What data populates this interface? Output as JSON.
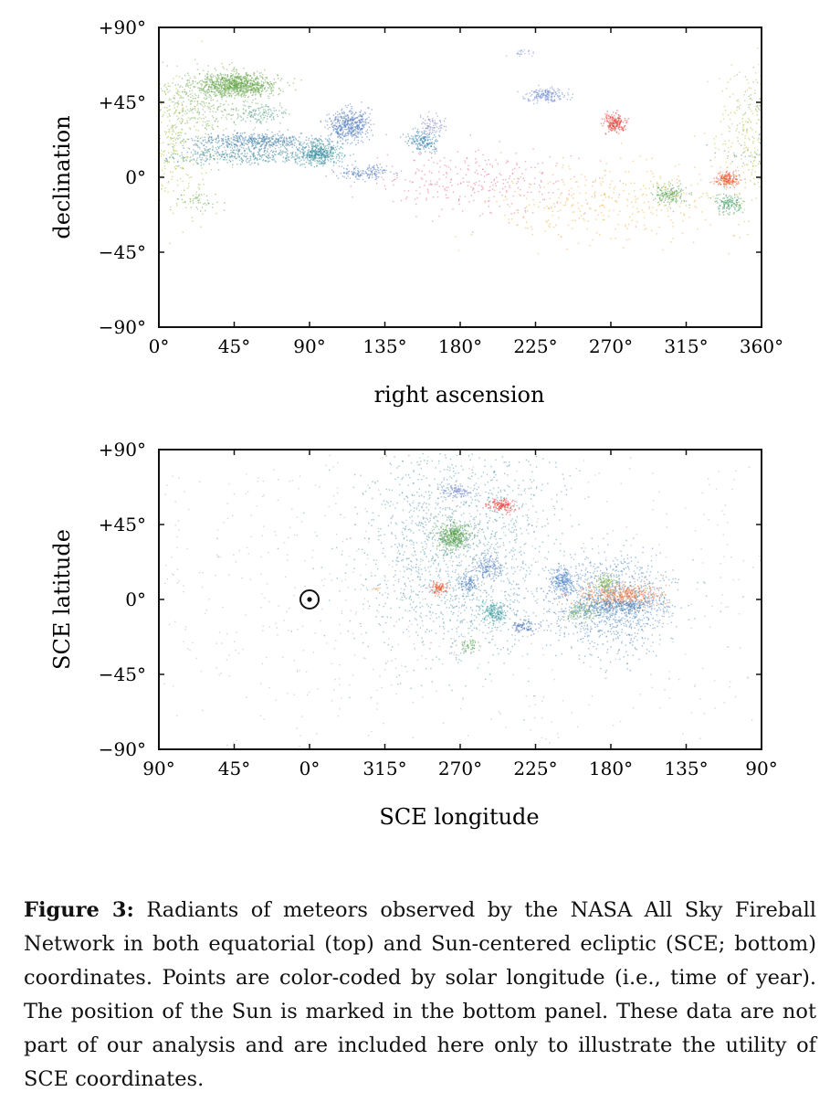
{
  "chart_data": [
    {
      "type": "scatter",
      "title": "",
      "xlabel": "right ascension",
      "ylabel": "declination",
      "xlim": [
        0,
        360
      ],
      "ylim": [
        -90,
        90
      ],
      "x_ticks": [
        "0°",
        "45°",
        "90°",
        "135°",
        "180°",
        "225°",
        "270°",
        "315°",
        "360°"
      ],
      "y_ticks": [
        "+90°",
        "+45°",
        "0°",
        "−45°",
        "−90°"
      ],
      "grid": false,
      "color_encoding": "solar longitude (time of year)",
      "clusters": [
        {
          "x": 46,
          "y": 56,
          "spread": [
            12,
            3.5
          ],
          "n": 900,
          "color": "#6aa84f"
        },
        {
          "x": 25,
          "y": 45,
          "spread": [
            18,
            10
          ],
          "n": 400,
          "color": "#7fb069"
        },
        {
          "x": 60,
          "y": 38,
          "spread": [
            8,
            3
          ],
          "n": 120,
          "color": "#5a9e8c"
        },
        {
          "x": 58,
          "y": 22,
          "spread": [
            22,
            2.5
          ],
          "n": 500,
          "color": "#3f7fa8"
        },
        {
          "x": 48,
          "y": 13,
          "spread": [
            26,
            2.5
          ],
          "n": 400,
          "color": "#4a8fa0"
        },
        {
          "x": 95,
          "y": 15,
          "spread": [
            6,
            3.5
          ],
          "n": 420,
          "color": "#3c8fa0"
        },
        {
          "x": 113,
          "y": 32,
          "spread": [
            6,
            4.5
          ],
          "n": 450,
          "color": "#5a7fc0"
        },
        {
          "x": 123,
          "y": 3,
          "spread": [
            8,
            2
          ],
          "n": 150,
          "color": "#5a7fc0"
        },
        {
          "x": 158,
          "y": 22,
          "spread": [
            5,
            3
          ],
          "n": 180,
          "color": "#3f86b0"
        },
        {
          "x": 162,
          "y": 32,
          "spread": [
            4,
            3
          ],
          "n": 80,
          "color": "#7f86c0"
        },
        {
          "x": 231,
          "y": 50,
          "spread": [
            6,
            2
          ],
          "n": 170,
          "color": "#6f8ad0"
        },
        {
          "x": 218,
          "y": 75,
          "spread": [
            4,
            1.5
          ],
          "n": 25,
          "color": "#8fa0d0"
        },
        {
          "x": 272,
          "y": 33,
          "spread": [
            3.5,
            2.5
          ],
          "n": 200,
          "color": "#e8413c"
        },
        {
          "x": 305,
          "y": -10,
          "spread": [
            5,
            3
          ],
          "n": 160,
          "color": "#5aa050"
        },
        {
          "x": 339,
          "y": -1,
          "spread": [
            3.5,
            2
          ],
          "n": 170,
          "color": "#f05030"
        },
        {
          "x": 340,
          "y": -15,
          "spread": [
            4,
            3
          ],
          "n": 130,
          "color": "#3f9a60"
        },
        {
          "x": 25,
          "y": -14,
          "spread": [
            8,
            3
          ],
          "n": 50,
          "color": "#6aa84f"
        },
        {
          "x": 190,
          "y": -3,
          "spread": [
            30,
            10
          ],
          "n": 300,
          "color": "#e96a8a"
        },
        {
          "x": 270,
          "y": -15,
          "spread": [
            35,
            12
          ],
          "n": 350,
          "color": "#f0b040"
        },
        {
          "x": 10,
          "y": 20,
          "spread": [
            12,
            20
          ],
          "n": 250,
          "color": "#a0c040"
        },
        {
          "x": 350,
          "y": 20,
          "spread": [
            12,
            25
          ],
          "n": 200,
          "color": "#c0c040"
        }
      ]
    },
    {
      "type": "scatter",
      "title": "",
      "xlabel": "SCE longitude",
      "ylabel": "SCE latitude",
      "xlim": [
        90,
        -270
      ],
      "ylim": [
        -90,
        90
      ],
      "x_ticks": [
        "90°",
        "45°",
        "0°",
        "315°",
        "270°",
        "225°",
        "180°",
        "135°",
        "90°"
      ],
      "y_ticks": [
        "+90°",
        "+45°",
        "0°",
        "−45°",
        "−90°"
      ],
      "grid": false,
      "sun_marker": {
        "x": 0,
        "y": 0,
        "symbol": "⊙"
      },
      "color_encoding": "solar longitude (time of year)",
      "clusters": [
        {
          "x": 270,
          "y": 30,
          "spread": [
            30,
            32
          ],
          "n": 1600,
          "color": "#5a9ab0"
        },
        {
          "x": 178,
          "y": -2,
          "spread": [
            18,
            14
          ],
          "n": 1100,
          "color": "#5a8fc0"
        },
        {
          "x": 274,
          "y": 38,
          "spread": [
            5,
            4
          ],
          "n": 400,
          "color": "#5aa050"
        },
        {
          "x": 272,
          "y": 65,
          "spread": [
            5,
            2
          ],
          "n": 90,
          "color": "#6f7fc8"
        },
        {
          "x": 245,
          "y": 57,
          "spread": [
            4,
            2
          ],
          "n": 140,
          "color": "#e8413c"
        },
        {
          "x": 283,
          "y": 7,
          "spread": [
            2.5,
            2
          ],
          "n": 90,
          "color": "#f05030"
        },
        {
          "x": 266,
          "y": 10,
          "spread": [
            3,
            2.5
          ],
          "n": 90,
          "color": "#4a7fc0"
        },
        {
          "x": 253,
          "y": 20,
          "spread": [
            5,
            4
          ],
          "n": 140,
          "color": "#5a80c0"
        },
        {
          "x": 250,
          "y": -7,
          "spread": [
            4.5,
            3.5
          ],
          "n": 200,
          "color": "#3c9aa0"
        },
        {
          "x": 232,
          "y": -16,
          "spread": [
            4,
            2
          ],
          "n": 80,
          "color": "#4a6fb8"
        },
        {
          "x": 265,
          "y": -27,
          "spread": [
            3,
            2.5
          ],
          "n": 50,
          "color": "#5aa050"
        },
        {
          "x": 209,
          "y": 11,
          "spread": [
            4,
            4
          ],
          "n": 220,
          "color": "#4a80c8"
        },
        {
          "x": 175,
          "y": 3,
          "spread": [
            12,
            3.5
          ],
          "n": 420,
          "color": "#f07a40"
        },
        {
          "x": 177,
          "y": -4,
          "spread": [
            14,
            2.5
          ],
          "n": 280,
          "color": "#4a80b8"
        },
        {
          "x": 183,
          "y": 10,
          "spread": [
            4,
            2.5
          ],
          "n": 90,
          "color": "#7ab040"
        },
        {
          "x": 198,
          "y": -7,
          "spread": [
            5,
            3
          ],
          "n": 100,
          "color": "#5aa050"
        },
        {
          "x": 321,
          "y": 7,
          "spread": [
            1.5,
            1
          ],
          "n": 8,
          "color": "#f0a040"
        },
        {
          "x": 0,
          "y": 0,
          "spread": [
            110,
            60
          ],
          "n": 700,
          "color": "#b0b8b0"
        }
      ]
    }
  ],
  "caption": {
    "label": "Figure 3:",
    "text": " Radiants of meteors observed by the NASA All Sky Fireball Network in both equatorial (top) and Sun-centered ecliptic (SCE; bottom) coordinates. Points are color-coded by solar longitude (i.e., time of year). The position of the Sun is marked in the bottom panel. These data are not part of our analysis and are included here only to illustrate the utility of SCE coordinates."
  }
}
